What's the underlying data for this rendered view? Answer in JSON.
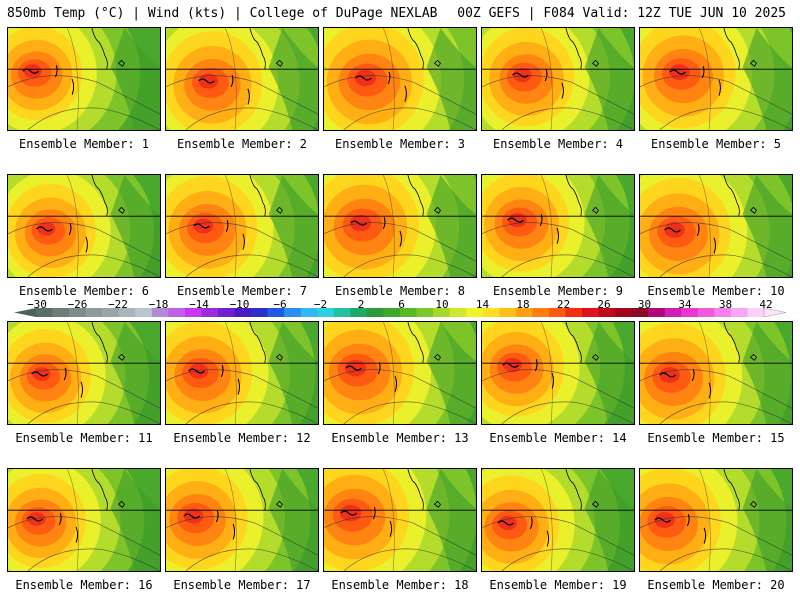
{
  "header": {
    "left": "850mb Temp (°C) | Wind (kts) | College of DuPage NEXLAB",
    "right": "00Z GEFS | F084 Valid: 12Z TUE JUN 10 2025"
  },
  "panels": [
    {
      "label": "Ensemble Member: 1"
    },
    {
      "label": "Ensemble Member: 2"
    },
    {
      "label": "Ensemble Member: 3"
    },
    {
      "label": "Ensemble Member: 4"
    },
    {
      "label": "Ensemble Member: 5"
    },
    {
      "label": "Ensemble Member: 6"
    },
    {
      "label": "Ensemble Member: 7"
    },
    {
      "label": "Ensemble Member: 8"
    },
    {
      "label": "Ensemble Member: 9"
    },
    {
      "label": "Ensemble Member: 10"
    },
    {
      "label": "Ensemble Member: 11"
    },
    {
      "label": "Ensemble Member: 12"
    },
    {
      "label": "Ensemble Member: 13"
    },
    {
      "label": "Ensemble Member: 14"
    },
    {
      "label": "Ensemble Member: 15"
    },
    {
      "label": "Ensemble Member: 16"
    },
    {
      "label": "Ensemble Member: 17"
    },
    {
      "label": "Ensemble Member: 18"
    },
    {
      "label": "Ensemble Member: 19"
    },
    {
      "label": "Ensemble Member: 20"
    }
  ],
  "colorbar": {
    "ticks": [
      "−30",
      "−26",
      "−22",
      "−18",
      "−14",
      "−10",
      "−6",
      "−2",
      "2",
      "6",
      "10",
      "14",
      "18",
      "22",
      "26",
      "30",
      "34",
      "38",
      "42"
    ],
    "colors": [
      "#5c6e6a",
      "#6e7d7a",
      "#7d8b8b",
      "#8e9999",
      "#9ba5a8",
      "#aab5bb",
      "#b9c6d0",
      "#b48ad6",
      "#c060e6",
      "#c838f0",
      "#9a2ce0",
      "#7020d0",
      "#4a1ac4",
      "#2a30c8",
      "#1f5be0",
      "#2a8ff0",
      "#33b7f2",
      "#2ad1e0",
      "#22c2a0",
      "#1ea86a",
      "#2d9a3a",
      "#3fa82a",
      "#58b826",
      "#7cc828",
      "#a6d82c",
      "#d2e830",
      "#f2f22a",
      "#ffe020",
      "#ffc018",
      "#ffa012",
      "#ff7d10",
      "#ff5a10",
      "#f23010",
      "#e0101c",
      "#c00a1c",
      "#a00818",
      "#8a0a28",
      "#b0087a",
      "#d01eb4",
      "#e83ad0",
      "#f05ce0",
      "#f582ec",
      "#f8a8f2",
      "#fbd0f8"
    ]
  }
}
